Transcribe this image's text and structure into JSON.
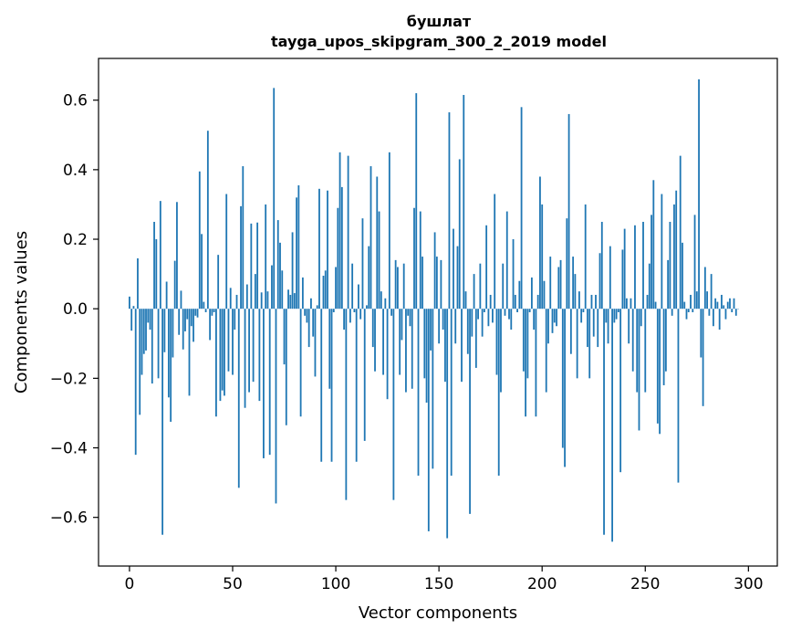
{
  "chart_data": {
    "type": "bar",
    "title": "бушлат",
    "subtitle": "tayga_upos_skipgram_300_2_2019 model",
    "xlabel": "Vector components",
    "ylabel": "Components values",
    "xlim": [
      -15,
      314
    ],
    "ylim": [
      -0.74,
      0.72
    ],
    "xticks": [
      0,
      50,
      100,
      150,
      200,
      250,
      300
    ],
    "xtick_labels": [
      "0",
      "50",
      "100",
      "150",
      "200",
      "250",
      "300"
    ],
    "yticks": [
      -0.6,
      -0.4,
      -0.2,
      0.0,
      0.2,
      0.4,
      0.6
    ],
    "ytick_labels": [
      "−0.6",
      "−0.4",
      "−0.2",
      "0.0",
      "0.2",
      "0.4",
      "0.6"
    ],
    "grid": false,
    "legend": "none",
    "bar_color": "#1f77b4",
    "values": [
      0.035,
      -0.063,
      0.008,
      -0.42,
      0.145,
      -0.305,
      -0.19,
      -0.13,
      -0.12,
      -0.04,
      -0.06,
      -0.215,
      0.25,
      0.2,
      -0.2,
      0.31,
      -0.65,
      -0.125,
      0.078,
      -0.255,
      -0.325,
      -0.14,
      0.138,
      0.307,
      -0.075,
      0.052,
      -0.117,
      -0.065,
      -0.03,
      -0.25,
      -0.05,
      -0.095,
      -0.02,
      -0.025,
      0.395,
      0.215,
      0.02,
      -0.01,
      0.512,
      -0.09,
      -0.02,
      -0.01,
      -0.31,
      0.155,
      -0.265,
      -0.235,
      -0.25,
      0.33,
      -0.18,
      0.06,
      -0.19,
      -0.06,
      0.04,
      -0.515,
      0.295,
      0.41,
      -0.285,
      0.07,
      -0.24,
      0.245,
      -0.21,
      0.1,
      0.248,
      -0.265,
      0.047,
      -0.43,
      0.3,
      0.05,
      -0.42,
      0.125,
      0.635,
      -0.56,
      0.255,
      0.19,
      0.11,
      -0.16,
      -0.335,
      0.055,
      0.04,
      0.22,
      0.045,
      0.32,
      0.355,
      -0.31,
      0.09,
      -0.02,
      -0.04,
      -0.11,
      0.03,
      -0.08,
      -0.195,
      0.01,
      0.345,
      -0.44,
      0.095,
      0.11,
      0.34,
      -0.23,
      -0.44,
      -0.01,
      0.12,
      0.29,
      0.45,
      0.35,
      -0.06,
      -0.55,
      0.44,
      -0.04,
      0.13,
      -0.01,
      -0.44,
      0.07,
      -0.03,
      0.26,
      -0.38,
      0.01,
      0.18,
      0.41,
      -0.11,
      -0.18,
      0.38,
      0.28,
      0.05,
      -0.19,
      0.03,
      -0.26,
      0.45,
      -0.02,
      -0.55,
      0.14,
      0.12,
      -0.19,
      -0.09,
      0.13,
      -0.24,
      -0.02,
      -0.05,
      -0.23,
      0.29,
      0.62,
      -0.48,
      0.28,
      0.15,
      -0.2,
      -0.27,
      -0.64,
      -0.12,
      -0.46,
      0.22,
      0.15,
      -0.1,
      0.14,
      -0.06,
      -0.21,
      -0.66,
      0.565,
      -0.48,
      0.23,
      -0.1,
      0.18,
      0.43,
      -0.21,
      0.615,
      0.05,
      -0.13,
      -0.59,
      -0.08,
      0.1,
      -0.17,
      -0.03,
      0.13,
      -0.08,
      -0.01,
      0.24,
      -0.05,
      0.04,
      -0.04,
      0.33,
      -0.19,
      -0.48,
      -0.24,
      0.13,
      -0.02,
      0.28,
      -0.03,
      -0.06,
      0.2,
      0.04,
      -0.01,
      0.08,
      0.58,
      -0.18,
      -0.31,
      -0.2,
      -0.01,
      0.09,
      -0.06,
      -0.31,
      0.04,
      0.38,
      0.3,
      0.08,
      -0.24,
      -0.1,
      0.15,
      -0.07,
      -0.04,
      -0.05,
      0.12,
      0.14,
      -0.4,
      -0.455,
      0.26,
      0.56,
      -0.13,
      0.15,
      0.1,
      -0.2,
      0.05,
      -0.04,
      -0.01,
      0.3,
      -0.11,
      -0.2,
      0.04,
      -0.08,
      0.04,
      -0.11,
      0.16,
      0.25,
      -0.65,
      -0.04,
      -0.1,
      0.18,
      -0.67,
      -0.04,
      -0.03,
      -0.01,
      -0.47,
      0.17,
      0.23,
      0.03,
      -0.1,
      0.03,
      -0.18,
      0.24,
      -0.24,
      -0.35,
      -0.05,
      0.25,
      -0.24,
      0.04,
      0.13,
      0.27,
      0.37,
      0.02,
      -0.33,
      -0.36,
      0.33,
      -0.22,
      -0.18,
      0.14,
      0.25,
      -0.02,
      0.3,
      0.34,
      -0.5,
      0.44,
      0.19,
      0.02,
      -0.03,
      -0.01,
      0.04,
      -0.01,
      0.27,
      0.05,
      0.66,
      -0.14,
      -0.28,
      0.12,
      0.05,
      -0.02,
      0.1,
      -0.05,
      0.03,
      0.02,
      -0.06,
      0.04,
      0.01,
      -0.03,
      0.02,
      0.03,
      -0.01,
      0.03,
      -0.02,
      0.0
    ]
  }
}
